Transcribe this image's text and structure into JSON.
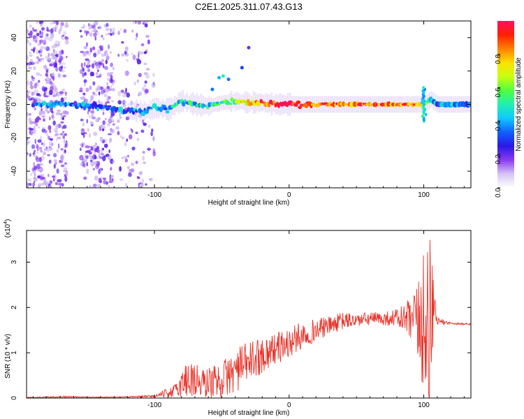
{
  "title": "C2E1.2025.311.07.43.G13",
  "chart_data": [
    {
      "type": "heatmap",
      "name": "spectrogram",
      "xlabel": "Height of straight line (km)",
      "ylabel": "Frequency (Hz)",
      "xlim": [
        -195,
        135
      ],
      "ylim": [
        -50,
        50
      ],
      "x_ticks": [
        -100,
        0,
        100
      ],
      "x_tick_labels": [
        "-100",
        "0",
        "100"
      ],
      "y_ticks": [
        -40,
        -20,
        0,
        20,
        40
      ],
      "y_tick_labels": [
        "-40",
        "-20",
        "0",
        "20",
        "40"
      ],
      "colorbar": {
        "label": "Normalized spectral amplitude",
        "range": [
          0,
          1
        ],
        "ticks": [
          0.0,
          0.2,
          0.4,
          0.6,
          0.8
        ],
        "tick_labels": [
          "0.0",
          "0.2",
          "0.4",
          "0.6",
          "0.8"
        ],
        "colors": [
          "#ffffff",
          "#d7c4f5",
          "#8a3cf0",
          "#2a18e6",
          "#1060ff",
          "#10c8ff",
          "#20f0b0",
          "#50ff40",
          "#c8ff10",
          "#ffe000",
          "#ff8000",
          "#ff2000",
          "#ff1060"
        ]
      },
      "ridge": {
        "x": [
          -195,
          -180,
          -165,
          -150,
          -135,
          -120,
          -105,
          -100,
          -90,
          -80,
          -70,
          -60,
          -50,
          -40,
          -30,
          -20,
          -10,
          0,
          10,
          20,
          40,
          60,
          80,
          95,
          100,
          105,
          110,
          120,
          135
        ],
        "freq": [
          0,
          0,
          0,
          -1,
          -2,
          -4,
          -4,
          -2,
          -3,
          2,
          0,
          -1,
          1,
          2,
          1,
          1,
          0,
          0,
          0,
          0,
          0,
          0,
          0,
          0,
          0,
          3,
          0,
          0,
          0
        ],
        "amplitude": [
          0.3,
          0.35,
          0.35,
          0.3,
          0.35,
          0.35,
          0.4,
          0.35,
          0.4,
          0.4,
          0.45,
          0.45,
          0.5,
          0.6,
          0.8,
          0.85,
          0.9,
          1.0,
          0.9,
          0.85,
          0.85,
          0.85,
          0.85,
          0.8,
          0.7,
          0.5,
          0.35,
          0.35,
          0.35
        ]
      },
      "noise_regions_x": [
        [
          -195,
          -165
        ],
        [
          -155,
          -130
        ],
        [
          -128,
          -100
        ]
      ]
    },
    {
      "type": "line",
      "name": "snr",
      "xlabel": "Height of straight line (km)",
      "ylabel": "SNR (10 * v/v)",
      "scale_label": "(x10",
      "scale_exponent": "4",
      "scale_suffix": ")",
      "xlim": [
        -195,
        135
      ],
      "ylim": [
        0,
        3.7
      ],
      "x_ticks": [
        -100,
        0,
        100
      ],
      "x_tick_labels": [
        "-100",
        "0",
        "100"
      ],
      "y_ticks": [
        0,
        1,
        2,
        3
      ],
      "y_tick_labels": [
        "0",
        "1",
        "2",
        "3"
      ],
      "series": [
        {
          "name": "SNR",
          "color": "#e8332a",
          "envelope_x": [
            -195,
            -170,
            -150,
            -130,
            -110,
            -100,
            -95,
            -85,
            -80,
            -75,
            -70,
            -65,
            -60,
            -50,
            -40,
            -30,
            -20,
            -10,
            0,
            10,
            20,
            30,
            40,
            50,
            60,
            70,
            80,
            90,
            95,
            100,
            103,
            105,
            107,
            110,
            120,
            135
          ],
          "envelope_mid": [
            0.01,
            0.03,
            0.02,
            0.02,
            0.03,
            0.04,
            0.08,
            0.15,
            0.3,
            0.45,
            0.4,
            0.3,
            0.35,
            0.4,
            0.6,
            0.8,
            0.95,
            1.1,
            1.2,
            1.4,
            1.5,
            1.6,
            1.7,
            1.72,
            1.75,
            1.75,
            1.78,
            1.7,
            1.6,
            1.5,
            1.3,
            1.4,
            1.9,
            1.7,
            1.65,
            1.63
          ],
          "envelope_amp": [
            0.01,
            0.02,
            0.01,
            0.01,
            0.02,
            0.03,
            0.06,
            0.15,
            0.3,
            0.5,
            0.45,
            0.35,
            0.35,
            0.4,
            0.5,
            0.45,
            0.4,
            0.35,
            0.35,
            0.3,
            0.25,
            0.2,
            0.2,
            0.15,
            0.15,
            0.15,
            0.2,
            0.5,
            0.9,
            1.4,
            1.6,
            1.8,
            0.6,
            0.08,
            0.03,
            0.02
          ]
        }
      ]
    }
  ]
}
